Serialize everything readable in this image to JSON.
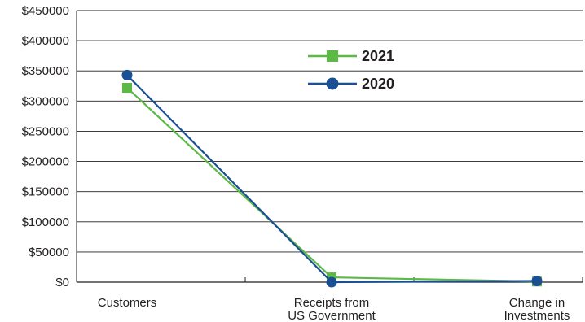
{
  "chart_data": {
    "type": "line",
    "title": "",
    "xlabel": "",
    "ylabel": "",
    "categories": [
      [
        "Customers"
      ],
      [
        "Receipts from",
        "US Government"
      ],
      [
        "Change in",
        "Investments"
      ]
    ],
    "y_ticks": [
      "$0",
      "$50000",
      "$100000",
      "$150000",
      "$200000",
      "$250000",
      "$300000",
      "$350000",
      "$400000",
      "$450000"
    ],
    "ylim": [
      0,
      450000
    ],
    "grid": true,
    "legend_position": "top-center",
    "series": [
      {
        "name": "2021",
        "values": [
          322000,
          8000,
          1000
        ],
        "color": "#5cb946",
        "marker": "square"
      },
      {
        "name": "2020",
        "values": [
          343000,
          0,
          2000
        ],
        "color": "#1b4f93",
        "marker": "circle"
      }
    ]
  }
}
